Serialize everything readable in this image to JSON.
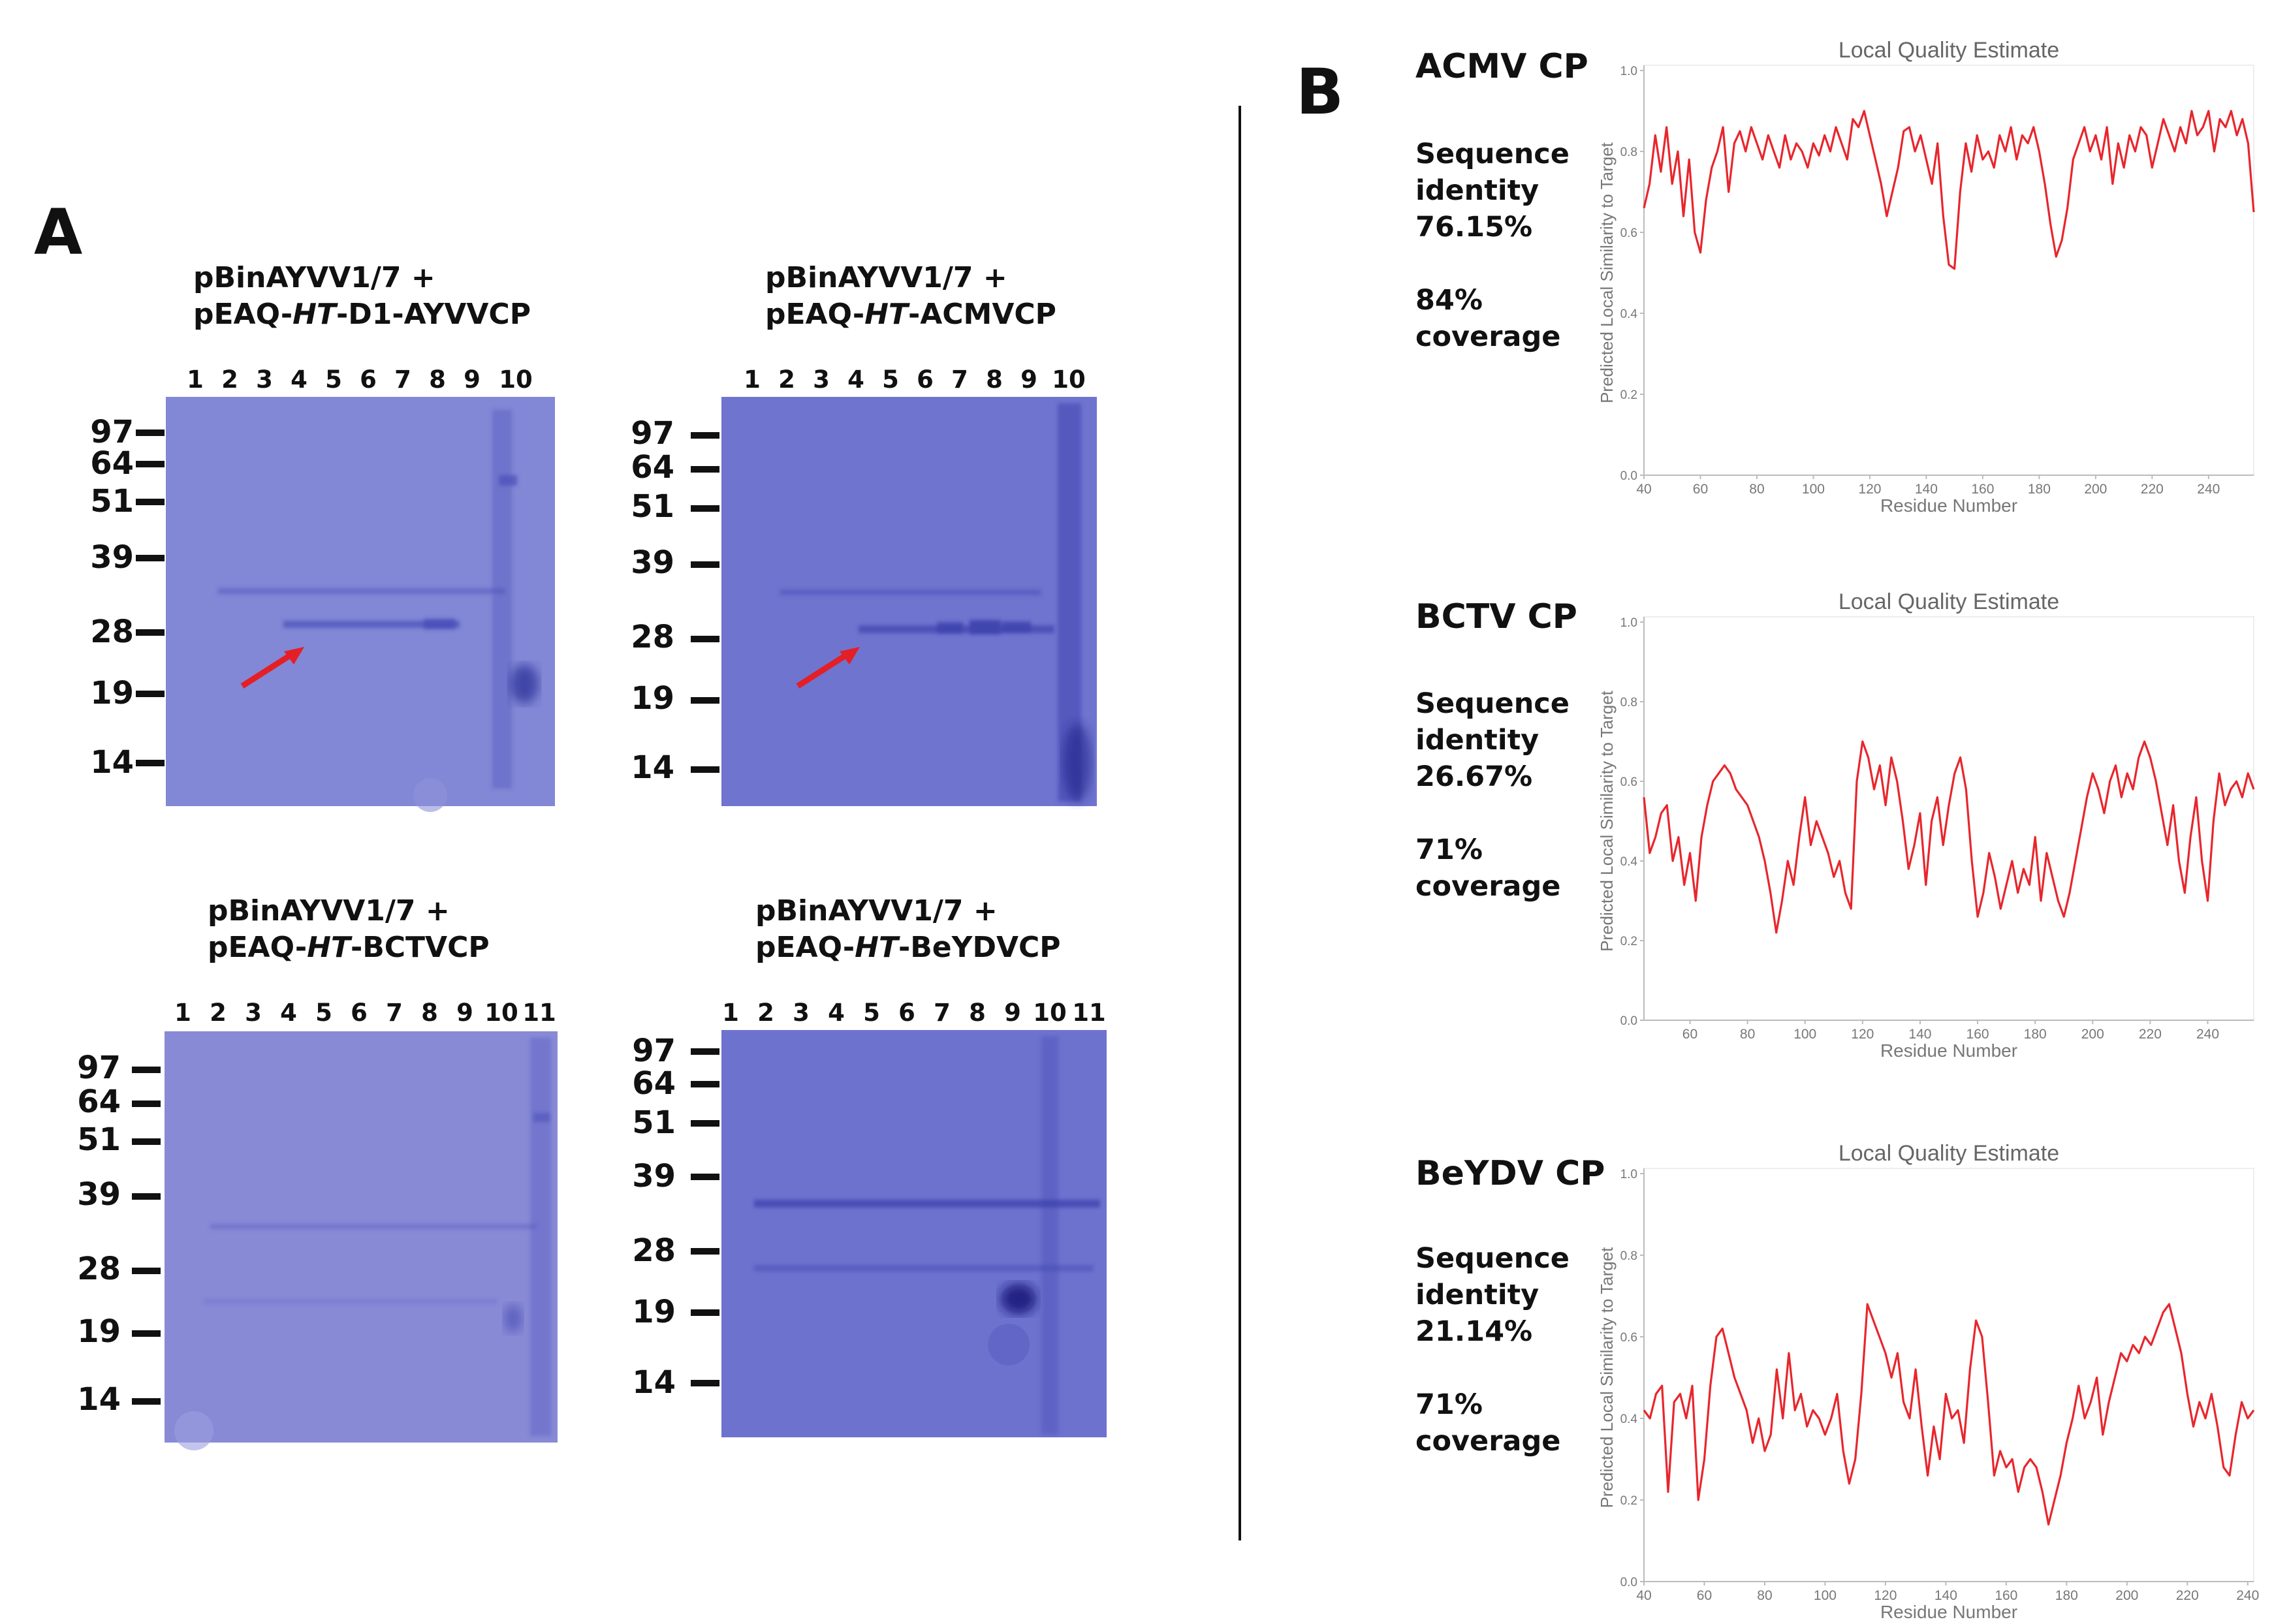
{
  "panels": {
    "a_label": "A",
    "b_label": "B"
  },
  "gels": [
    {
      "line1": "pBinAYVV1/7 +",
      "line2_pre": "pEAQ-",
      "line2_ital": "HT",
      "line2_post": "-D1-AYVVCP",
      "lanes": [
        "1",
        "2",
        "3",
        "4",
        "5",
        "6",
        "7",
        "8",
        "9",
        "10"
      ],
      "markers": [
        "97",
        "64",
        "51",
        "39",
        "28",
        "19",
        "14"
      ]
    },
    {
      "line1": "pBinAYVV1/7 +",
      "line2_pre": "pEAQ-",
      "line2_ital": "HT",
      "line2_post": "-ACMVCP",
      "lanes": [
        "1",
        "2",
        "3",
        "4",
        "5",
        "6",
        "7",
        "8",
        "9",
        "10"
      ],
      "markers": [
        "97",
        "64",
        "51",
        "39",
        "28",
        "19",
        "14"
      ]
    },
    {
      "line1": "pBinAYVV1/7 +",
      "line2_pre": "pEAQ-",
      "line2_ital": "HT",
      "line2_post": "-BCTVCP",
      "lanes": [
        "1",
        "2",
        "3",
        "4",
        "5",
        "6",
        "7",
        "8",
        "9",
        "10",
        "11"
      ],
      "markers": [
        "97",
        "64",
        "51",
        "39",
        "28",
        "19",
        "14"
      ]
    },
    {
      "line1": "pBinAYVV1/7 +",
      "line2_pre": "pEAQ-",
      "line2_ital": "HT",
      "line2_post": "-BeYDVCP",
      "lanes": [
        "1",
        "2",
        "3",
        "4",
        "5",
        "6",
        "7",
        "8",
        "9",
        "10",
        "11"
      ],
      "markers": [
        "97",
        "64",
        "51",
        "39",
        "28",
        "19",
        "14"
      ]
    }
  ],
  "models": [
    {
      "virus": "ACMV CP",
      "seq_label": "Sequence",
      "seq_label2": "identity",
      "identity": "76.15%",
      "coverage": "84%",
      "coverage_label": "coverage"
    },
    {
      "virus": "BCTV CP",
      "seq_label": "Sequence",
      "seq_label2": "identity",
      "identity": "26.67%",
      "coverage": "71%",
      "coverage_label": "coverage"
    },
    {
      "virus": "BeYDV CP",
      "seq_label": "Sequence",
      "seq_label2": "identity",
      "identity": "21.14%",
      "coverage": "71%",
      "coverage_label": "coverage"
    }
  ],
  "colors": {
    "gel": "#6f74cf",
    "trace": "#e8262d",
    "arrow": "#e41f25",
    "axis": "#bbbbbb"
  },
  "chart_data": [
    {
      "type": "line",
      "title": "Local Quality Estimate",
      "xlabel": "Residue Number",
      "ylabel": "Predicted Local Similarity to Target",
      "xlim": [
        40,
        256
      ],
      "ylim": [
        0.0,
        1.0
      ],
      "xticks": [
        "40",
        "60",
        "80",
        "100",
        "120",
        "140",
        "160",
        "180",
        "200",
        "220",
        "240"
      ],
      "yticks": [
        "0.0",
        "0.2",
        "0.4",
        "0.6",
        "0.8",
        "1.0"
      ],
      "x": [
        40,
        42,
        44,
        46,
        48,
        50,
        52,
        54,
        56,
        58,
        60,
        62,
        64,
        66,
        68,
        70,
        72,
        74,
        76,
        78,
        80,
        82,
        84,
        86,
        88,
        90,
        92,
        94,
        96,
        98,
        100,
        102,
        104,
        106,
        108,
        110,
        112,
        114,
        116,
        118,
        120,
        122,
        124,
        126,
        128,
        130,
        132,
        134,
        136,
        138,
        140,
        142,
        144,
        146,
        148,
        150,
        152,
        154,
        156,
        158,
        160,
        162,
        164,
        166,
        168,
        170,
        172,
        174,
        176,
        178,
        180,
        182,
        184,
        186,
        188,
        190,
        192,
        194,
        196,
        198,
        200,
        202,
        204,
        206,
        208,
        210,
        212,
        214,
        216,
        218,
        220,
        222,
        224,
        226,
        228,
        230,
        232,
        234,
        236,
        238,
        240,
        242,
        244,
        246,
        248,
        250,
        252,
        254,
        256
      ],
      "values": [
        0.66,
        0.72,
        0.84,
        0.75,
        0.86,
        0.72,
        0.8,
        0.64,
        0.78,
        0.6,
        0.55,
        0.68,
        0.76,
        0.8,
        0.86,
        0.7,
        0.82,
        0.85,
        0.8,
        0.86,
        0.82,
        0.78,
        0.84,
        0.8,
        0.76,
        0.84,
        0.78,
        0.82,
        0.8,
        0.76,
        0.82,
        0.79,
        0.84,
        0.8,
        0.86,
        0.82,
        0.78,
        0.88,
        0.86,
        0.9,
        0.84,
        0.78,
        0.72,
        0.64,
        0.7,
        0.76,
        0.85,
        0.86,
        0.8,
        0.84,
        0.78,
        0.72,
        0.82,
        0.64,
        0.52,
        0.51,
        0.7,
        0.82,
        0.75,
        0.84,
        0.78,
        0.8,
        0.76,
        0.84,
        0.8,
        0.86,
        0.78,
        0.84,
        0.82,
        0.86,
        0.8,
        0.72,
        0.62,
        0.54,
        0.58,
        0.66,
        0.78,
        0.82,
        0.86,
        0.8,
        0.84,
        0.78,
        0.86,
        0.72,
        0.82,
        0.76,
        0.84,
        0.8,
        0.86,
        0.84,
        0.76,
        0.82,
        0.88,
        0.84,
        0.8,
        0.86,
        0.82,
        0.9,
        0.84,
        0.86,
        0.9,
        0.8,
        0.88,
        0.86,
        0.9,
        0.84,
        0.88,
        0.82,
        0.65
      ]
    },
    {
      "type": "line",
      "title": "Local Quality Estimate",
      "xlabel": "Residue Number",
      "ylabel": "Predicted Local Similarity to Target",
      "xlim": [
        44,
        256
      ],
      "ylim": [
        0.0,
        1.0
      ],
      "xticks": [
        "60",
        "80",
        "100",
        "120",
        "140",
        "160",
        "180",
        "200",
        "220",
        "240"
      ],
      "yticks": [
        "0.0",
        "0.2",
        "0.4",
        "0.6",
        "0.8",
        "1.0"
      ],
      "x": [
        44,
        46,
        48,
        50,
        52,
        54,
        56,
        58,
        60,
        62,
        64,
        66,
        68,
        70,
        72,
        74,
        76,
        78,
        80,
        82,
        84,
        86,
        88,
        90,
        92,
        94,
        96,
        98,
        100,
        102,
        104,
        106,
        108,
        110,
        112,
        114,
        116,
        118,
        120,
        122,
        124,
        126,
        128,
        130,
        132,
        134,
        136,
        138,
        140,
        142,
        144,
        146,
        148,
        150,
        152,
        154,
        156,
        158,
        160,
        162,
        164,
        166,
        168,
        170,
        172,
        174,
        176,
        178,
        180,
        182,
        184,
        186,
        188,
        190,
        192,
        194,
        196,
        198,
        200,
        202,
        204,
        206,
        208,
        210,
        212,
        214,
        216,
        218,
        220,
        222,
        224,
        226,
        228,
        230,
        232,
        234,
        236,
        238,
        240,
        242,
        244,
        246,
        248,
        250,
        252,
        254,
        256
      ],
      "values": [
        0.56,
        0.42,
        0.46,
        0.52,
        0.54,
        0.4,
        0.46,
        0.34,
        0.42,
        0.3,
        0.46,
        0.54,
        0.6,
        0.62,
        0.64,
        0.62,
        0.58,
        0.56,
        0.54,
        0.5,
        0.46,
        0.4,
        0.32,
        0.22,
        0.3,
        0.4,
        0.34,
        0.46,
        0.56,
        0.44,
        0.5,
        0.46,
        0.42,
        0.36,
        0.4,
        0.32,
        0.28,
        0.6,
        0.7,
        0.66,
        0.58,
        0.64,
        0.54,
        0.66,
        0.6,
        0.5,
        0.38,
        0.44,
        0.52,
        0.34,
        0.5,
        0.56,
        0.44,
        0.54,
        0.62,
        0.66,
        0.58,
        0.4,
        0.26,
        0.32,
        0.42,
        0.36,
        0.28,
        0.34,
        0.4,
        0.32,
        0.38,
        0.34,
        0.46,
        0.3,
        0.42,
        0.36,
        0.3,
        0.26,
        0.32,
        0.4,
        0.48,
        0.56,
        0.62,
        0.58,
        0.52,
        0.6,
        0.64,
        0.56,
        0.62,
        0.58,
        0.66,
        0.7,
        0.66,
        0.6,
        0.52,
        0.44,
        0.54,
        0.4,
        0.32,
        0.46,
        0.56,
        0.4,
        0.3,
        0.5,
        0.62,
        0.54,
        0.58,
        0.6,
        0.56,
        0.62,
        0.58
      ]
    },
    {
      "type": "line",
      "title": "Local Quality Estimate",
      "xlabel": "Residue Number",
      "ylabel": "Predicted Local Similarity to Target",
      "xlim": [
        40,
        242
      ],
      "ylim": [
        0.0,
        1.0
      ],
      "xticks": [
        "40",
        "60",
        "80",
        "100",
        "120",
        "140",
        "160",
        "180",
        "200",
        "220",
        "240"
      ],
      "yticks": [
        "0.0",
        "0.2",
        "0.4",
        "0.6",
        "0.8",
        "1.0"
      ],
      "x": [
        40,
        42,
        44,
        46,
        48,
        50,
        52,
        54,
        56,
        58,
        60,
        62,
        64,
        66,
        68,
        70,
        72,
        74,
        76,
        78,
        80,
        82,
        84,
        86,
        88,
        90,
        92,
        94,
        96,
        98,
        100,
        102,
        104,
        106,
        108,
        110,
        112,
        114,
        116,
        118,
        120,
        122,
        124,
        126,
        128,
        130,
        132,
        134,
        136,
        138,
        140,
        142,
        144,
        146,
        148,
        150,
        152,
        154,
        156,
        158,
        160,
        162,
        164,
        166,
        168,
        170,
        172,
        174,
        176,
        178,
        180,
        182,
        184,
        186,
        188,
        190,
        192,
        194,
        196,
        198,
        200,
        202,
        204,
        206,
        208,
        210,
        212,
        214,
        216,
        218,
        220,
        222,
        224,
        226,
        228,
        230,
        232,
        234,
        236,
        238,
        240,
        242
      ],
      "values": [
        0.42,
        0.4,
        0.46,
        0.48,
        0.22,
        0.44,
        0.46,
        0.4,
        0.48,
        0.2,
        0.3,
        0.48,
        0.6,
        0.62,
        0.56,
        0.5,
        0.46,
        0.42,
        0.34,
        0.4,
        0.32,
        0.36,
        0.52,
        0.4,
        0.56,
        0.42,
        0.46,
        0.38,
        0.42,
        0.4,
        0.36,
        0.4,
        0.46,
        0.32,
        0.24,
        0.3,
        0.46,
        0.68,
        0.64,
        0.6,
        0.56,
        0.5,
        0.56,
        0.44,
        0.4,
        0.52,
        0.38,
        0.26,
        0.38,
        0.3,
        0.46,
        0.4,
        0.42,
        0.34,
        0.52,
        0.64,
        0.6,
        0.44,
        0.26,
        0.32,
        0.28,
        0.3,
        0.22,
        0.28,
        0.3,
        0.28,
        0.22,
        0.14,
        0.2,
        0.26,
        0.34,
        0.4,
        0.48,
        0.4,
        0.44,
        0.5,
        0.36,
        0.44,
        0.5,
        0.56,
        0.54,
        0.58,
        0.56,
        0.6,
        0.58,
        0.62,
        0.66,
        0.68,
        0.62,
        0.56,
        0.46,
        0.38,
        0.44,
        0.4,
        0.46,
        0.38,
        0.28,
        0.26,
        0.36,
        0.44,
        0.4,
        0.42
      ]
    }
  ]
}
